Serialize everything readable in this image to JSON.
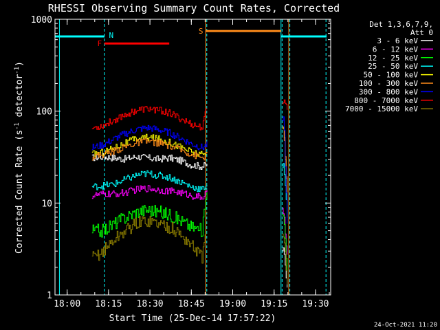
{
  "chart_data": {
    "type": "line",
    "title": "RHESSI Observing Summary Count Rates, Corrected",
    "xlabel": "Start Time (25-Dec-14 17:57:22)",
    "ylabel": "Corrected Count Rate (s⁻¹ detector⁻¹)",
    "ylabel_main": "Corrected Count Rate (s",
    "ylabel_sup1": "-1",
    "ylabel_mid": " detector",
    "ylabel_sup2": "-1",
    "ylabel_end": ")",
    "yscale": "log",
    "ylim": [
      1,
      1000
    ],
    "xlim_minutes": [
      -4.4,
      95.5
    ],
    "x_ticks": [
      {
        "label": "18:00",
        "min": 0
      },
      {
        "label": "18:15",
        "min": 15
      },
      {
        "label": "18:30",
        "min": 30
      },
      {
        "label": "18:45",
        "min": 45
      },
      {
        "label": "19:00",
        "min": 60
      },
      {
        "label": "19:15",
        "min": 75
      },
      {
        "label": "19:30",
        "min": 90
      }
    ],
    "y_ticks": [
      {
        "label": "1",
        "value": 1
      },
      {
        "label": "10",
        "value": 10
      },
      {
        "label": "100",
        "value": 100
      },
      {
        "label": "1000",
        "value": 1000
      }
    ],
    "legend_header": [
      "Det 1,3,6,7,9,",
      "Att 0"
    ],
    "legend_position": "top-right",
    "data_gaps_minutes": [
      [
        50.8,
        77.8
      ]
    ],
    "series": [
      {
        "name": "3 - 6 keV",
        "color": "#ffffff",
        "x": [
          9,
          13,
          17,
          21,
          25,
          29,
          33,
          37,
          41,
          45,
          49,
          50.5,
          78.5,
          80
        ],
        "y": [
          31,
          32,
          31,
          30,
          32,
          31,
          30,
          31,
          29,
          26,
          25,
          26,
          3,
          1
        ]
      },
      {
        "name": "6 - 12 keV",
        "color": "#ff00ff",
        "x": [
          9,
          13,
          17,
          21,
          25,
          29,
          33,
          37,
          41,
          45,
          49,
          50.5,
          78.5,
          80
        ],
        "y": [
          12,
          12.5,
          12.5,
          13,
          14,
          14.5,
          14,
          13.5,
          13,
          12,
          11.5,
          13,
          8,
          2
        ]
      },
      {
        "name": "12 - 25 keV",
        "color": "#00ff00",
        "x": [
          9,
          13,
          17,
          21,
          25,
          29,
          33,
          37,
          41,
          45,
          49,
          50.5,
          78.5,
          80
        ],
        "y": [
          5,
          5,
          6,
          7,
          8,
          8.5,
          8,
          7.5,
          6.5,
          5.5,
          5,
          15,
          7,
          1.5
        ]
      },
      {
        "name": "25 - 50 keV",
        "color": "#00ffff",
        "x": [
          9,
          13,
          17,
          21,
          25,
          29,
          33,
          37,
          41,
          45,
          49,
          50.5,
          78.5,
          80
        ],
        "y": [
          15,
          15.5,
          16,
          18,
          20,
          21,
          20,
          19,
          17,
          15,
          14,
          16,
          25,
          5
        ]
      },
      {
        "name": "50 - 100 keV",
        "color": "#ffff00",
        "x": [
          9,
          13,
          17,
          21,
          25,
          29,
          33,
          37,
          41,
          45,
          49,
          50.5,
          78.5,
          80
        ],
        "y": [
          34,
          36,
          40,
          45,
          50,
          52,
          50,
          46,
          41,
          36,
          33,
          35,
          70,
          6
        ]
      },
      {
        "name": "100 - 300 keV",
        "color": "#ff8c1a",
        "x": [
          9,
          13,
          17,
          21,
          25,
          29,
          33,
          37,
          41,
          45,
          49,
          50.5,
          78.5,
          80
        ],
        "y": [
          32,
          34,
          37,
          41,
          45,
          47,
          45,
          42,
          38,
          34,
          31,
          33,
          65,
          7
        ]
      },
      {
        "name": "300 - 800 keV",
        "color": "#0000ff",
        "x": [
          9,
          13,
          17,
          21,
          25,
          29,
          33,
          37,
          41,
          45,
          49,
          50.5,
          78.5,
          80
        ],
        "y": [
          40,
          43,
          50,
          57,
          63,
          66,
          63,
          58,
          51,
          44,
          40,
          43,
          80,
          3
        ]
      },
      {
        "name": "800 - 7000 keV",
        "color": "#ff0000",
        "x": [
          9,
          13,
          17,
          21,
          25,
          29,
          33,
          37,
          41,
          45,
          49,
          50.5,
          78.5,
          80
        ],
        "y": [
          65,
          70,
          80,
          92,
          102,
          106,
          103,
          95,
          83,
          72,
          66,
          112,
          128,
          108
        ]
      },
      {
        "name": "7000 - 15000 keV",
        "color": "#8b7d00",
        "x": [
          9,
          13,
          17,
          21,
          25,
          29,
          33,
          37,
          41,
          45,
          49,
          50.5,
          78.5,
          80
        ],
        "y": [
          2.5,
          3,
          4,
          5,
          6,
          6.5,
          6,
          5.5,
          4.5,
          3.5,
          2.5,
          8,
          4,
          1
        ]
      }
    ],
    "annotations": [
      {
        "label": "N",
        "color": "#00ffff",
        "kind": "bar",
        "y": 650,
        "segments": [
          [
            -4.4,
            13.5
          ],
          [
            77.5,
            94
          ]
        ]
      },
      {
        "label": "F",
        "color": "#ff0000",
        "kind": "bar",
        "y": 545,
        "segments": [
          [
            13.5,
            37
          ]
        ]
      },
      {
        "label": "S",
        "color": "#ff8c1a",
        "kind": "bar",
        "y": 745,
        "segments": [
          [
            50.2,
            77.5
          ]
        ]
      }
    ],
    "vlines": [
      {
        "min": -2.8,
        "color": "#00ffff",
        "style": "solid"
      },
      {
        "min": 13.5,
        "color": "#00ffff",
        "style": "dashed"
      },
      {
        "min": 50.2,
        "color": "#ff8c1a",
        "style": "solid"
      },
      {
        "min": 50.6,
        "color": "#00ffff",
        "style": "dashed"
      },
      {
        "min": 77.5,
        "color": "#00ffff",
        "style": "solid"
      },
      {
        "min": 77.9,
        "color": "#00ffff",
        "style": "dashed"
      },
      {
        "min": 80.3,
        "color": "#ff8c1a",
        "style": "solid"
      },
      {
        "min": 80.7,
        "color": "#00ffff",
        "style": "dashed"
      },
      {
        "min": 93.8,
        "color": "#00ffff",
        "style": "dashed"
      }
    ]
  },
  "footer_stamp": "24-Oct-2021 11:20"
}
